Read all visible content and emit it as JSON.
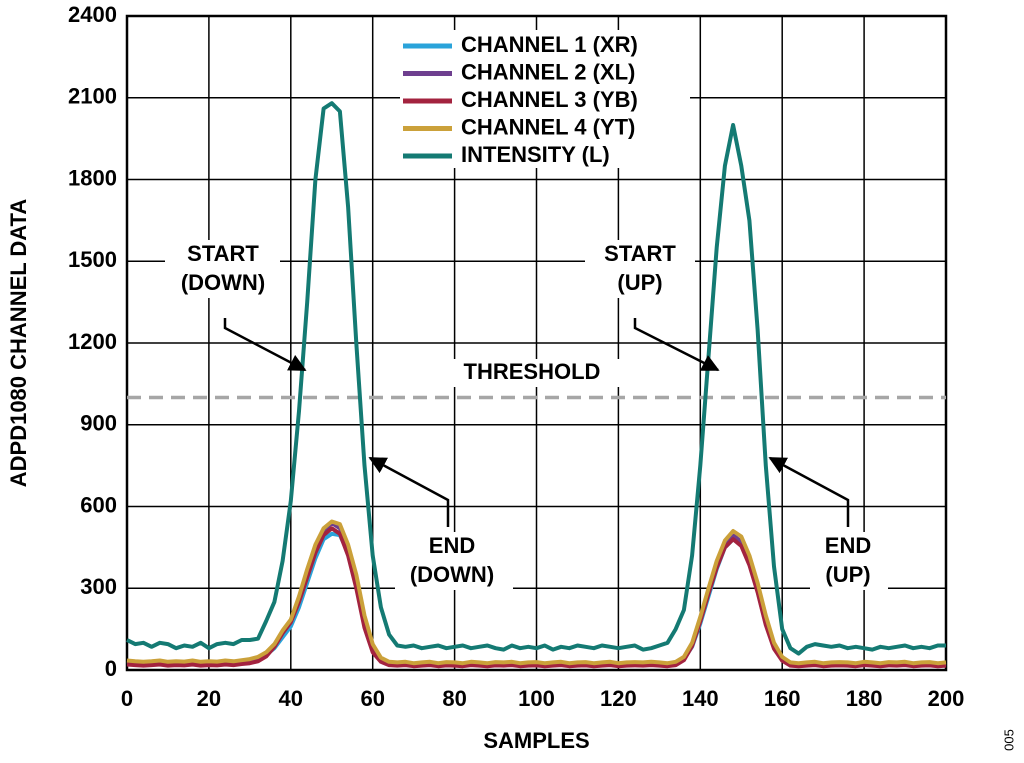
{
  "chart_data": {
    "type": "line",
    "x_label": "SAMPLES",
    "y_label": "ADPD1080 CHANNEL DATA",
    "figure_id": "005",
    "xlim": [
      0,
      200
    ],
    "ylim": [
      0,
      2400
    ],
    "xticks": [
      0,
      20,
      40,
      60,
      80,
      100,
      120,
      140,
      160,
      180,
      200
    ],
    "yticks": [
      0,
      300,
      600,
      900,
      1200,
      1500,
      1800,
      2100,
      2400
    ],
    "grid": true,
    "legend": "top",
    "x": [
      0,
      2,
      4,
      6,
      8,
      10,
      12,
      14,
      16,
      18,
      20,
      22,
      24,
      26,
      28,
      30,
      32,
      34,
      36,
      38,
      40,
      42,
      44,
      46,
      48,
      50,
      52,
      54,
      56,
      58,
      60,
      62,
      64,
      66,
      68,
      70,
      72,
      74,
      76,
      78,
      80,
      82,
      84,
      86,
      88,
      90,
      92,
      94,
      96,
      98,
      100,
      102,
      104,
      106,
      108,
      110,
      112,
      114,
      116,
      118,
      120,
      122,
      124,
      126,
      128,
      130,
      132,
      134,
      136,
      138,
      140,
      142,
      144,
      146,
      148,
      150,
      152,
      154,
      156,
      158,
      160,
      162,
      164,
      166,
      168,
      170,
      172,
      174,
      176,
      178,
      180,
      182,
      184,
      186,
      188,
      190,
      192,
      194,
      196,
      198,
      200
    ],
    "series": [
      {
        "name": "CHANNEL 1 (XR)",
        "color": "#2aa3da",
        "values": [
          30,
          28,
          25,
          27,
          30,
          25,
          28,
          26,
          30,
          25,
          28,
          27,
          30,
          28,
          32,
          35,
          40,
          55,
          80,
          120,
          160,
          230,
          320,
          410,
          480,
          500,
          495,
          430,
          320,
          180,
          80,
          40,
          25,
          22,
          25,
          20,
          22,
          25,
          20,
          24,
          22,
          20,
          25,
          22,
          20,
          24,
          22,
          25,
          20,
          22,
          24,
          20,
          22,
          25,
          20,
          22,
          24,
          20,
          22,
          25,
          20,
          22,
          24,
          22,
          25,
          24,
          20,
          25,
          40,
          85,
          170,
          270,
          370,
          450,
          480,
          460,
          390,
          290,
          170,
          85,
          40,
          22,
          20,
          22,
          25,
          20,
          22,
          24,
          22,
          20,
          25,
          22,
          20,
          24,
          22,
          25,
          20,
          22,
          24,
          20,
          22
        ]
      },
      {
        "name": "CHANNEL 2 (XL)",
        "color": "#6e3f8f",
        "values": [
          25,
          24,
          22,
          25,
          24,
          20,
          24,
          22,
          25,
          22,
          24,
          25,
          26,
          25,
          28,
          32,
          38,
          60,
          90,
          140,
          180,
          260,
          360,
          450,
          510,
          540,
          520,
          440,
          320,
          170,
          75,
          35,
          22,
          20,
          22,
          18,
          20,
          22,
          18,
          22,
          20,
          18,
          22,
          20,
          18,
          22,
          20,
          22,
          18,
          20,
          22,
          18,
          20,
          22,
          18,
          20,
          22,
          18,
          20,
          22,
          18,
          20,
          22,
          20,
          22,
          20,
          18,
          22,
          38,
          90,
          185,
          290,
          390,
          465,
          495,
          470,
          400,
          300,
          180,
          85,
          38,
          20,
          18,
          20,
          22,
          18,
          20,
          22,
          20,
          18,
          22,
          20,
          18,
          22,
          20,
          22,
          18,
          20,
          22,
          18,
          20
        ]
      },
      {
        "name": "CHANNEL 3 (YB)",
        "color": "#a3233f",
        "values": [
          20,
          18,
          16,
          18,
          20,
          16,
          18,
          17,
          20,
          16,
          18,
          17,
          20,
          18,
          22,
          25,
          32,
          50,
          85,
          135,
          175,
          250,
          340,
          430,
          495,
          520,
          500,
          420,
          300,
          155,
          65,
          30,
          18,
          16,
          18,
          14,
          16,
          18,
          14,
          17,
          16,
          14,
          18,
          16,
          14,
          17,
          16,
          18,
          14,
          16,
          17,
          14,
          16,
          18,
          14,
          16,
          17,
          14,
          16,
          18,
          14,
          16,
          17,
          16,
          18,
          16,
          14,
          18,
          36,
          88,
          178,
          280,
          375,
          450,
          480,
          455,
          385,
          285,
          165,
          78,
          34,
          16,
          14,
          16,
          18,
          14,
          16,
          17,
          16,
          14,
          18,
          16,
          14,
          17,
          16,
          18,
          14,
          16,
          17,
          14,
          16
        ]
      },
      {
        "name": "CHANNEL 4 (YT)",
        "color": "#cba13a",
        "values": [
          35,
          32,
          30,
          32,
          35,
          30,
          32,
          31,
          35,
          30,
          32,
          31,
          35,
          32,
          36,
          40,
          48,
          65,
          95,
          145,
          185,
          270,
          370,
          460,
          520,
          545,
          535,
          460,
          350,
          200,
          95,
          45,
          30,
          28,
          30,
          25,
          28,
          30,
          25,
          29,
          28,
          25,
          30,
          28,
          25,
          29,
          28,
          30,
          25,
          28,
          29,
          25,
          28,
          30,
          25,
          28,
          29,
          25,
          28,
          30,
          25,
          28,
          29,
          28,
          30,
          28,
          25,
          30,
          48,
          100,
          195,
          300,
          400,
          475,
          510,
          490,
          420,
          320,
          200,
          100,
          48,
          28,
          25,
          28,
          30,
          25,
          28,
          29,
          28,
          25,
          30,
          28,
          25,
          29,
          28,
          30,
          25,
          28,
          29,
          25,
          28
        ]
      },
      {
        "name": "INTENSITY (L)",
        "color": "#147a73",
        "values": [
          110,
          95,
          100,
          85,
          100,
          95,
          80,
          90,
          85,
          100,
          80,
          95,
          100,
          95,
          110,
          110,
          115,
          180,
          250,
          400,
          620,
          950,
          1350,
          1800,
          2060,
          2080,
          2050,
          1700,
          1200,
          750,
          420,
          230,
          130,
          90,
          85,
          90,
          80,
          85,
          90,
          80,
          85,
          90,
          80,
          85,
          90,
          80,
          75,
          90,
          80,
          85,
          80,
          90,
          75,
          85,
          80,
          90,
          85,
          80,
          90,
          85,
          80,
          85,
          90,
          75,
          80,
          90,
          100,
          150,
          220,
          420,
          750,
          1150,
          1550,
          1850,
          2000,
          1850,
          1650,
          1250,
          750,
          380,
          150,
          80,
          60,
          85,
          95,
          90,
          85,
          90,
          80,
          85,
          80,
          75,
          85,
          80,
          85,
          90,
          80,
          85,
          80,
          90,
          90
        ]
      }
    ],
    "threshold": {
      "value": 1000,
      "label": "THRESHOLD"
    },
    "annotations": [
      {
        "lines": [
          "START",
          "(DOWN)"
        ]
      },
      {
        "lines": [
          "END",
          "(DOWN)"
        ]
      },
      {
        "lines": [
          "START",
          "(UP)"
        ]
      },
      {
        "lines": [
          "END",
          "(UP)"
        ]
      }
    ]
  }
}
